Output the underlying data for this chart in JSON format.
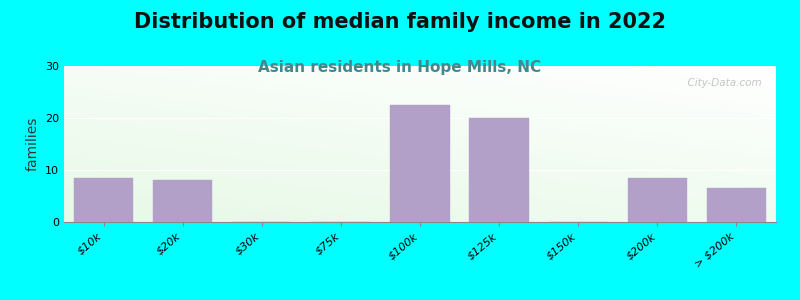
{
  "title": "Distribution of median family income in 2022",
  "subtitle": "Asian residents in Hope Mills, NC",
  "ylabel": "families",
  "background_color": "#00FFFF",
  "bar_color": "#b3a0c8",
  "categories": [
    "$10k",
    "$20k",
    "$30k",
    "$75k",
    "$100k",
    "$125k",
    "$150k",
    "$200k",
    "> $200k"
  ],
  "values": [
    8.5,
    8.0,
    0,
    0,
    22.5,
    20.0,
    0,
    8.5,
    6.5
  ],
  "ylim": [
    0,
    30
  ],
  "yticks": [
    0,
    10,
    20,
    30
  ],
  "title_fontsize": 15,
  "subtitle_fontsize": 11,
  "subtitle_color": "#448888",
  "ylabel_fontsize": 10,
  "tick_label_fontsize": 8,
  "watermark": "  City-Data.com",
  "bar_width": 0.75
}
